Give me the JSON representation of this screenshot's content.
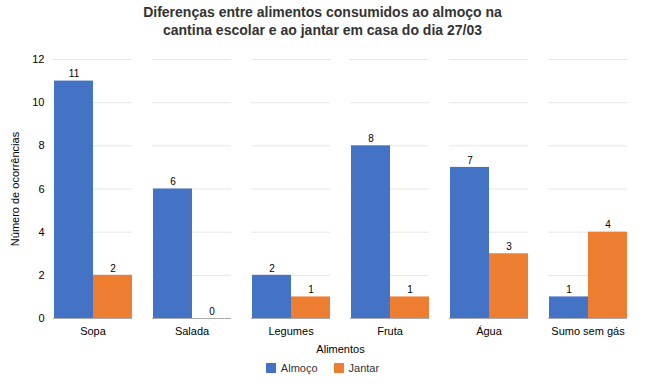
{
  "chart_data": {
    "type": "bar",
    "title": "Diferenças entre alimentos consumidos ao almoço na\ncantina escolar e ao jantar em casa do dia 27/03",
    "xlabel": "Alimentos",
    "ylabel": "Número de ocorrências",
    "categories": [
      "Sopa",
      "Salada",
      "Legumes",
      "Fruta",
      "Água",
      "Sumo sem gás"
    ],
    "series": [
      {
        "name": "Almoço",
        "color": "#4472C4",
        "values": [
          11,
          6,
          2,
          8,
          7,
          1
        ]
      },
      {
        "name": "Jantar",
        "color": "#ED7D31",
        "values": [
          2,
          0,
          1,
          1,
          3,
          4
        ]
      }
    ],
    "ylim": [
      0,
      12
    ],
    "yticks": [
      0,
      2,
      4,
      6,
      8,
      10,
      12
    ],
    "grid": true,
    "legend": "bottom",
    "data_labels": true
  }
}
